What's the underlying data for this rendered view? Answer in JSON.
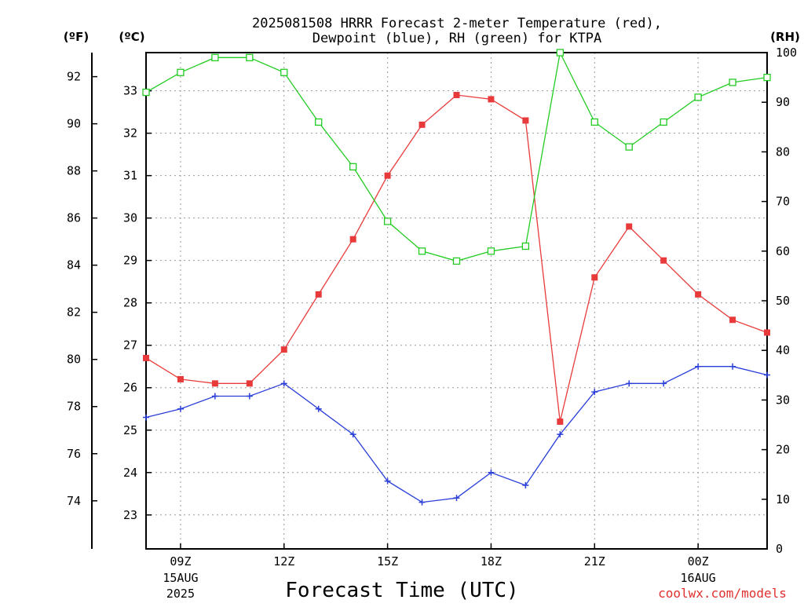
{
  "chart_data": {
    "type": "line",
    "title_line1": "2025081508 HRRR Forecast 2-meter Temperature (red),",
    "title_line2": "Dewpoint (blue), RH (green) for KTPA",
    "xlabel": "Forecast Time (UTC)",
    "credit": "coolwx.com/models",
    "axis_units": {
      "fahrenheit": "(ºF)",
      "celsius": "(ºC)",
      "rh": "(RH)"
    },
    "x_range_hours": [
      8,
      26
    ],
    "x_ticks": [
      {
        "hour": 9,
        "label": "09Z",
        "date_line1": "15AUG",
        "date_line2": "2025"
      },
      {
        "hour": 12,
        "label": "12Z",
        "date_line1": "",
        "date_line2": ""
      },
      {
        "hour": 15,
        "label": "15Z",
        "date_line1": "",
        "date_line2": ""
      },
      {
        "hour": 18,
        "label": "18Z",
        "date_line1": "",
        "date_line2": ""
      },
      {
        "hour": 21,
        "label": "21Z",
        "date_line1": "",
        "date_line2": ""
      },
      {
        "hour": 24,
        "label": "00Z",
        "date_line1": "16AUG",
        "date_line2": ""
      }
    ],
    "celsius_range": [
      22.2,
      33.9
    ],
    "celsius_ticks": [
      "23",
      "24",
      "25",
      "26",
      "27",
      "28",
      "29",
      "30",
      "31",
      "32",
      "33"
    ],
    "fahrenheit_ticks": [
      "74",
      "76",
      "78",
      "80",
      "82",
      "84",
      "86",
      "88",
      "90",
      "92"
    ],
    "rh_range": [
      0,
      100
    ],
    "rh_ticks": [
      "0",
      "10",
      "20",
      "30",
      "40",
      "50",
      "60",
      "70",
      "80",
      "90",
      "100"
    ],
    "grid": true,
    "hours": [
      8,
      9,
      10,
      11,
      12,
      13,
      14,
      15,
      16,
      17,
      18,
      19,
      20,
      21,
      22,
      23,
      24,
      25,
      26
    ],
    "series": [
      {
        "key": "temperature",
        "unit": "C",
        "color": "#e83a3a",
        "marker": "filled-square",
        "values": [
          26.7,
          26.2,
          26.1,
          26.1,
          26.9,
          28.2,
          29.5,
          31.0,
          32.2,
          32.9,
          32.8,
          32.3,
          25.2,
          28.6,
          29.8,
          29.0,
          28.2,
          27.6,
          27.3
        ]
      },
      {
        "key": "dewpoint",
        "unit": "C",
        "color": "#2a3fd9",
        "marker": "plus",
        "values": [
          25.3,
          25.5,
          25.8,
          25.8,
          26.1,
          25.5,
          24.9,
          23.8,
          23.3,
          23.4,
          24.0,
          23.7,
          24.9,
          25.9,
          26.1,
          26.1,
          26.5,
          26.5,
          26.3
        ]
      },
      {
        "key": "rh",
        "unit": "%",
        "color": "#22cc22",
        "marker": "open-square",
        "values": [
          92,
          96,
          99,
          99,
          96,
          86,
          77,
          66,
          60,
          58,
          60,
          61,
          100,
          86,
          81,
          86,
          91,
          94,
          95
        ]
      }
    ]
  }
}
